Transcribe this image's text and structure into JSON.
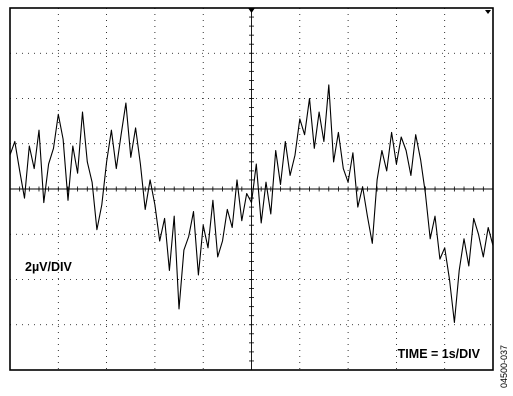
{
  "chart_data": {
    "type": "line",
    "title": "",
    "xlabel": "",
    "ylabel": "",
    "x_divisions": 10,
    "y_divisions": 8,
    "grid": true,
    "x_scale_label": "TIME = 1s/DIV",
    "y_scale_label": "2µV/DIV",
    "x_unit_per_div": "1s",
    "y_unit_per_div": "2µV",
    "xlim": [
      0,
      10
    ],
    "ylim": [
      -8,
      8
    ],
    "series": [
      {
        "x": [
          0.0,
          0.1,
          0.2,
          0.3,
          0.4,
          0.5,
          0.6,
          0.7,
          0.8,
          0.9,
          1.0,
          1.1,
          1.2,
          1.3,
          1.4,
          1.5,
          1.6,
          1.7,
          1.8,
          1.9,
          2.0,
          2.1,
          2.2,
          2.3,
          2.4,
          2.5,
          2.6,
          2.7,
          2.8,
          2.9,
          3.0,
          3.1,
          3.2,
          3.3,
          3.4,
          3.5,
          3.6,
          3.7,
          3.8,
          3.9,
          4.0,
          4.1,
          4.2,
          4.3,
          4.4,
          4.5,
          4.6,
          4.7,
          4.8,
          4.9,
          5.0,
          5.1,
          5.2,
          5.3,
          5.4,
          5.5,
          5.6,
          5.7,
          5.8,
          5.9,
          6.0,
          6.1,
          6.2,
          6.3,
          6.4,
          6.5,
          6.6,
          6.7,
          6.8,
          6.9,
          7.0,
          7.1,
          7.2,
          7.3,
          7.4,
          7.5,
          7.6,
          7.7,
          7.8,
          7.9,
          8.0,
          8.1,
          8.2,
          8.3,
          8.4,
          8.5,
          8.6,
          8.7,
          8.8,
          8.9,
          9.0,
          9.1,
          9.2,
          9.3,
          9.4,
          9.5,
          9.6,
          9.7,
          9.8,
          9.9,
          10.0
        ],
        "y": [
          1.5,
          2.1,
          0.8,
          -0.4,
          1.9,
          0.9,
          2.6,
          -0.6,
          1.1,
          1.8,
          3.3,
          2.2,
          -0.5,
          1.9,
          0.7,
          3.4,
          1.2,
          0.3,
          -1.8,
          -0.7,
          1.2,
          2.6,
          0.9,
          2.4,
          3.8,
          1.4,
          2.7,
          1.1,
          -0.9,
          0.4,
          -0.7,
          -2.3,
          -1.3,
          -3.6,
          -1.2,
          -5.3,
          -2.7,
          -2.1,
          -1.0,
          -3.8,
          -1.6,
          -2.6,
          -0.5,
          -3.0,
          -2.3,
          -0.9,
          -1.7,
          0.4,
          -1.4,
          -0.2,
          -0.6,
          1.1,
          -1.5,
          0.3,
          -1.1,
          1.7,
          0.2,
          2.1,
          0.6,
          1.5,
          3.1,
          2.4,
          4.0,
          1.8,
          3.4,
          2.1,
          4.6,
          1.2,
          2.5,
          0.9,
          0.3,
          1.6,
          -0.8,
          0.1,
          -1.2,
          -2.4,
          0.4,
          1.7,
          0.8,
          2.5,
          1.1,
          2.3,
          1.7,
          0.6,
          2.4,
          1.3,
          -0.2,
          -2.2,
          -1.2,
          -3.1,
          -2.6,
          -4.0,
          -5.9,
          -3.6,
          -2.2,
          -3.4,
          -1.3,
          -2.0,
          -3.0,
          -1.7,
          -2.5
        ]
      }
    ]
  },
  "figure_id": "04500-037"
}
